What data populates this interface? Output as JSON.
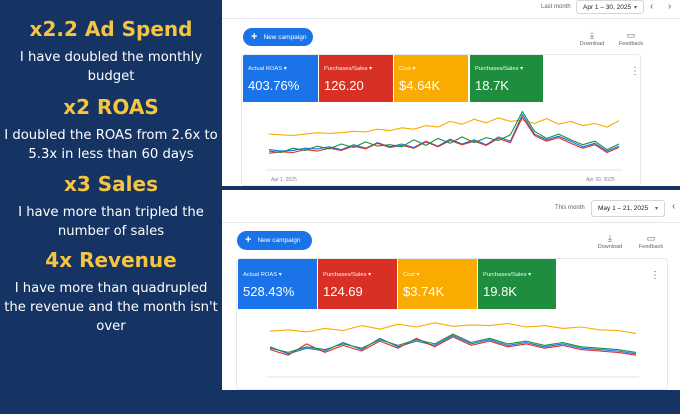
{
  "left": {
    "h1": "x2.2 Ad Spend",
    "p1": "I have doubled the monthly budget",
    "h2": "x2 ROAS",
    "p2": "I doubled the ROAS from 2.6x to 5.3x in less than 60 days",
    "h3": "x3 Sales",
    "p3": "I have more than tripled the number of sales",
    "h4": "4x Revenue",
    "p4": "I have more than quadrupled the revenue and the month isn't over"
  },
  "colors": {
    "blue": "#1a73e8",
    "red": "#d93025",
    "yellow": "#f9ab00",
    "green": "#1e8e3e",
    "navy": "#163463",
    "gold": "#f5c542"
  },
  "top_panel": {
    "range_label": "Last month",
    "range_value": "Apr 1 – 30, 2025",
    "new_campaign": "New campaign",
    "download": "Download",
    "feedback": "Feedback",
    "metrics": [
      {
        "label": "Actual ROAS",
        "value": "403.76%"
      },
      {
        "label": "Purchases/Sales",
        "value": "126.20"
      },
      {
        "label": "Cost",
        "value": "$4.64K"
      },
      {
        "label": "Purchases/Sales",
        "value": "18.7K"
      }
    ],
    "start_date": "Apr 1, 2025",
    "end_date": "Apr 30, 2025"
  },
  "bottom_panel": {
    "range_label": "This month",
    "range_value": "May 1 – 21, 2025",
    "new_campaign": "New campaign",
    "download": "Download",
    "feedback": "Feedback",
    "metrics": [
      {
        "label": "Actual ROAS",
        "value": "528.43%"
      },
      {
        "label": "Purchases/Sales",
        "value": "124.69"
      },
      {
        "label": "Cost",
        "value": "$3.74K"
      },
      {
        "label": "Purchases/Sales",
        "value": "19.8K"
      }
    ]
  },
  "chart_data": [
    {
      "type": "line",
      "series": [
        {
          "color": "#f9ab00",
          "values": [
            48,
            47,
            46,
            48,
            50,
            49,
            50,
            52,
            51,
            55,
            53,
            57,
            55,
            60,
            58,
            66,
            62,
            69,
            64,
            71,
            66,
            68,
            63,
            70,
            62,
            66,
            60,
            63,
            58,
            67
          ]
        },
        {
          "color": "#1a73e8",
          "values": [
            26,
            24,
            25,
            28,
            27,
            30,
            26,
            33,
            28,
            36,
            30,
            34,
            29,
            38,
            31,
            41,
            34,
            40,
            33,
            44,
            38,
            76,
            48,
            40,
            45,
            38,
            30,
            35,
            24,
            31
          ]
        },
        {
          "color": "#d93025",
          "values": [
            21,
            23,
            22,
            26,
            24,
            28,
            25,
            31,
            27,
            35,
            29,
            32,
            28,
            37,
            30,
            39,
            33,
            38,
            32,
            42,
            36,
            72,
            46,
            38,
            43,
            35,
            28,
            33,
            22,
            29
          ]
        },
        {
          "color": "#1e8e3e",
          "values": [
            24,
            22,
            28,
            25,
            31,
            27,
            34,
            29,
            37,
            31,
            33,
            30,
            40,
            32,
            42,
            35,
            44,
            36,
            43,
            39,
            47,
            80,
            52,
            42,
            48,
            40,
            33,
            38,
            26,
            34
          ]
        }
      ]
    },
    {
      "type": "line",
      "series": [
        {
          "color": "#f9ab00",
          "values": [
            62,
            64,
            61,
            66,
            63,
            70,
            65,
            72,
            68,
            74,
            69,
            71,
            70,
            73,
            68,
            70,
            66,
            68,
            64,
            63,
            59
          ]
        },
        {
          "color": "#1a73e8",
          "values": [
            40,
            30,
            38,
            34,
            46,
            36,
            52,
            40,
            48,
            42,
            56,
            44,
            50,
            42,
            46,
            40,
            44,
            38,
            36,
            34,
            30
          ]
        },
        {
          "color": "#d93025",
          "values": [
            36,
            28,
            44,
            32,
            42,
            34,
            48,
            38,
            52,
            40,
            54,
            42,
            48,
            40,
            44,
            38,
            42,
            36,
            34,
            32,
            28
          ]
        },
        {
          "color": "#1e8e3e",
          "values": [
            38,
            32,
            40,
            36,
            44,
            38,
            50,
            42,
            50,
            44,
            58,
            46,
            52,
            44,
            48,
            42,
            46,
            40,
            38,
            36,
            32
          ]
        }
      ]
    }
  ]
}
